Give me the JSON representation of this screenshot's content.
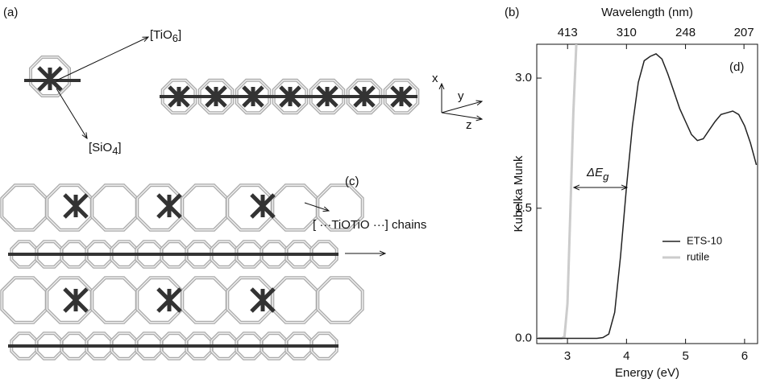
{
  "figure": {
    "panel_a": "(a)",
    "tio6": {
      "text": "[TiO",
      "sub": "6",
      "tail": "]"
    },
    "sio4": {
      "text": "[SiO",
      "sub": "4",
      "tail": "]"
    },
    "axes_labels": [
      "x",
      "y",
      "z"
    ],
    "panel_c": "(c)",
    "chains_label": "[ ···TiOTiO ···] chains"
  },
  "chart_data": {
    "type": "line",
    "panel_label": "(b)",
    "inner_label": "(d)",
    "x_label": "Energy (eV)",
    "y_label": "Kubelka Munk",
    "x2_label": "Wavelength (nm)",
    "xlim": [
      2.48,
      6.22
    ],
    "ylim": [
      -0.06,
      3.39
    ],
    "xticks": [
      3,
      4,
      5,
      6
    ],
    "yticks": [
      {
        "value": 0,
        "label": "0.0"
      },
      1.5,
      {
        "value": 3,
        "label": "3.0"
      }
    ],
    "x2ticks": [
      413,
      310,
      248,
      207
    ],
    "legend": "lower right",
    "annotation": {
      "text": "ΔE",
      "sub": "g"
    },
    "series": [
      {
        "name": "ETS-10",
        "color": "#222222",
        "x": [
          2.5,
          3.0,
          3.5,
          3.6,
          3.7,
          3.8,
          3.9,
          4.0,
          4.1,
          4.2,
          4.3,
          4.4,
          4.5,
          4.6,
          4.7,
          4.8,
          4.9,
          5.0,
          5.1,
          5.2,
          5.3,
          5.4,
          5.5,
          5.6,
          5.7,
          5.8,
          5.9,
          6.0,
          6.1,
          6.2
        ],
        "values": [
          0,
          0,
          0,
          0.01,
          0.05,
          0.3,
          0.95,
          1.75,
          2.45,
          2.95,
          3.2,
          3.25,
          3.28,
          3.22,
          3.05,
          2.85,
          2.65,
          2.5,
          2.35,
          2.28,
          2.3,
          2.4,
          2.5,
          2.58,
          2.6,
          2.62,
          2.58,
          2.45,
          2.25,
          2.0
        ]
      },
      {
        "name": "rutile",
        "color": "#cccccc",
        "x": [
          2.5,
          2.9,
          2.95,
          3.0,
          3.05,
          3.1,
          3.15
        ],
        "values": [
          0,
          0,
          0.02,
          0.4,
          1.5,
          2.6,
          3.39
        ]
      }
    ]
  }
}
